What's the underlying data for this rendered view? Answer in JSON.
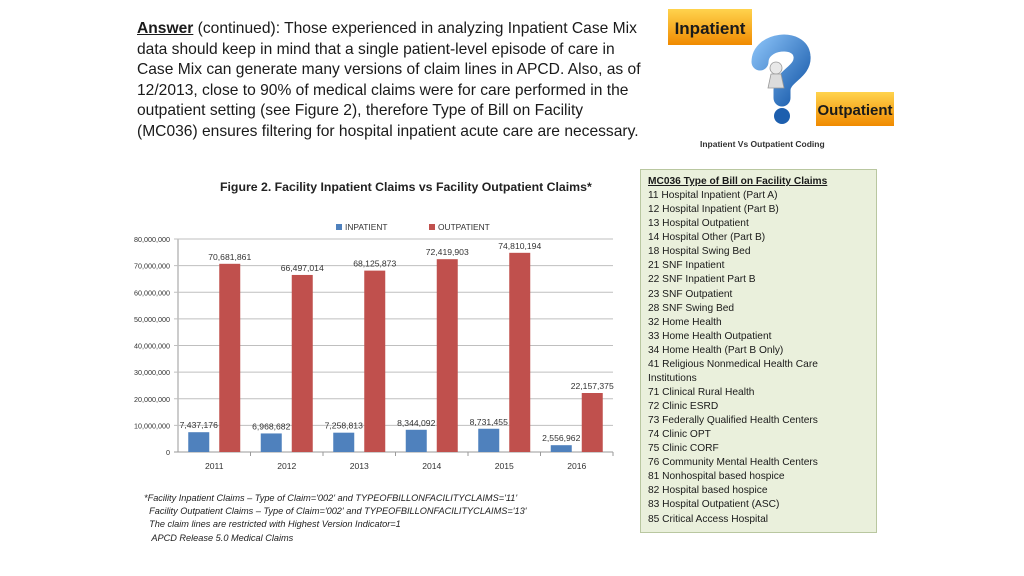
{
  "answer": {
    "lead": "Answer",
    "body": " (continued):  Those experienced in analyzing Inpatient Case Mix data should keep in mind that a single patient-level episode of care in Case Mix can generate many versions of claim lines in APCD. Also, as of 12/2013, close to 90% of medical claims were for care performed in the outpatient setting (see Figure 2), therefore Type of Bill on Facility (MC036) ensures filtering for hospital inpatient acute care are necessary."
  },
  "illustration": {
    "inpatient_label": "Inpatient",
    "outpatient_label": "Outpatient",
    "caption": "Inpatient Vs Outpatient Coding"
  },
  "type_of_bill": {
    "header": "MC036 Type of Bill on Facility Claims",
    "items": [
      "11  Hospital Inpatient (Part A)",
      "12  Hospital Inpatient (Part B)",
      "13  Hospital Outpatient",
      "14  Hospital Other (Part B)",
      "18  Hospital Swing Bed",
      "21  SNF Inpatient",
      "22  SNF Inpatient Part B",
      "23  SNF Outpatient",
      "28  SNF Swing Bed",
      "32  Home Health",
      "33  Home Health Outpatient",
      "34  Home Health (Part B Only)",
      "41  Religious Nonmedical Health Care Institutions",
      "71  Clinical Rural Health",
      "72  Clinic ESRD",
      "73  Federally Qualified Health Centers",
      "74  Clinic OPT",
      "75  Clinic CORF",
      "76  Community Mental Health Centers",
      "81  Nonhospital based hospice",
      "82  Hospital based hospice",
      "83  Hospital Outpatient (ASC)",
      "85  Critical Access Hospital"
    ]
  },
  "chart_data": {
    "type": "bar",
    "title": "Figure 2. Facility Inpatient Claims vs Facility Outpatient Claims*",
    "categories": [
      "2011",
      "2012",
      "2013",
      "2014",
      "2015",
      "2016"
    ],
    "series": [
      {
        "name": "INPATIENT",
        "color": "#4f81bd",
        "values": [
          7437176,
          6968682,
          7258813,
          8344092,
          8731455,
          2556962
        ],
        "labels": [
          "7,437,176",
          "6,968,682",
          "7,258,813",
          "8,344,092",
          "8,731,455",
          "2,556,962"
        ]
      },
      {
        "name": "OUTPATIENT",
        "color": "#c0504d",
        "values": [
          70681861,
          66497014,
          68125873,
          72419903,
          74810194,
          22157375
        ],
        "labels": [
          "70,681,861",
          "66,497,014",
          "68,125,873",
          "72,419,903",
          "74,810,194",
          "22,157,375"
        ]
      }
    ],
    "ylim": [
      0,
      80000000
    ],
    "yticks": [
      0,
      10000000,
      20000000,
      30000000,
      40000000,
      50000000,
      60000000,
      70000000,
      80000000
    ],
    "ytick_labels": [
      "0",
      "10,000,000",
      "20,000,000",
      "30,000,000",
      "40,000,000",
      "50,000,000",
      "60,000,000",
      "70,000,000",
      "80,000,000"
    ],
    "grid": true,
    "legend": "top-center"
  },
  "footnote": [
    "*Facility Inpatient Claims – Type of Claim='002' and TYPEOFBILLONFACILITYCLAIMS='11'",
    "  Facility Outpatient Claims – Type of Claim='002' and TYPEOFBILLONFACILITYCLAIMS='13'",
    "  The claim lines are restricted with Highest Version Indicator=1",
    "   APCD Release 5.0 Medical Claims"
  ]
}
